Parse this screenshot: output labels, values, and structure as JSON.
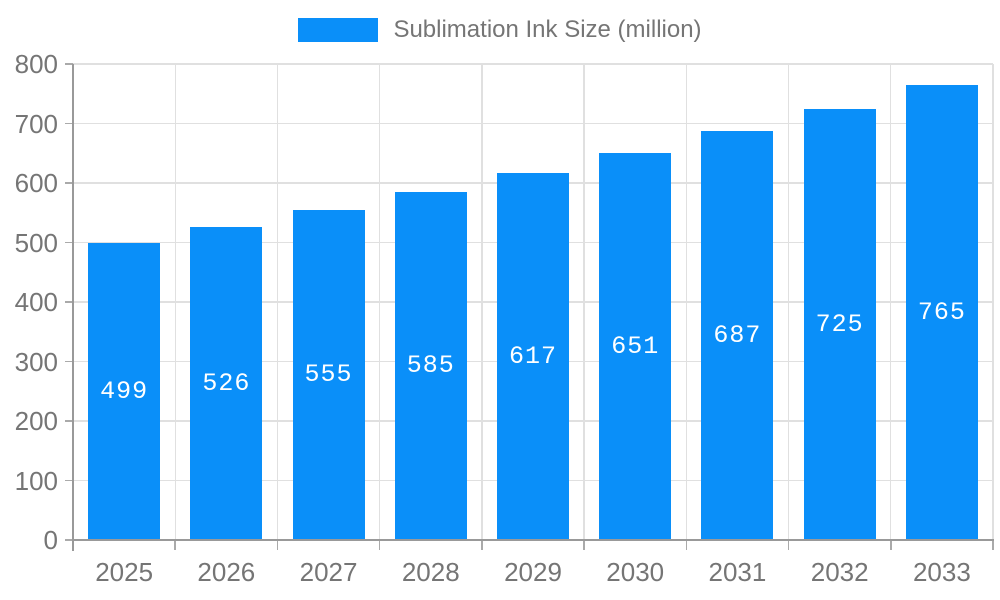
{
  "legend": {
    "label": "Sublimation Ink Size (million)"
  },
  "colors": {
    "bar": "#0a8ff9",
    "grid": "#e0e0e0",
    "axis": "#999999",
    "tick": "#aaaaaa",
    "axis_text": "#757575",
    "value_text": "#ffffff",
    "background": "#ffffff"
  },
  "chart_data": {
    "type": "bar",
    "title": "Sublimation Ink Size (million)",
    "categories": [
      "2025",
      "2026",
      "2027",
      "2028",
      "2029",
      "2030",
      "2031",
      "2032",
      "2033"
    ],
    "series": [
      {
        "name": "Sublimation Ink Size (million)",
        "values": [
          499,
          526,
          555,
          585,
          617,
          651,
          687,
          725,
          765
        ]
      }
    ],
    "xlabel": "",
    "ylabel": "",
    "ylim": [
      0,
      800
    ],
    "yticks": [
      0,
      100,
      200,
      300,
      400,
      500,
      600,
      700,
      800
    ],
    "grid": true,
    "legend_position": "top-center",
    "value_labels": "inside-center"
  }
}
